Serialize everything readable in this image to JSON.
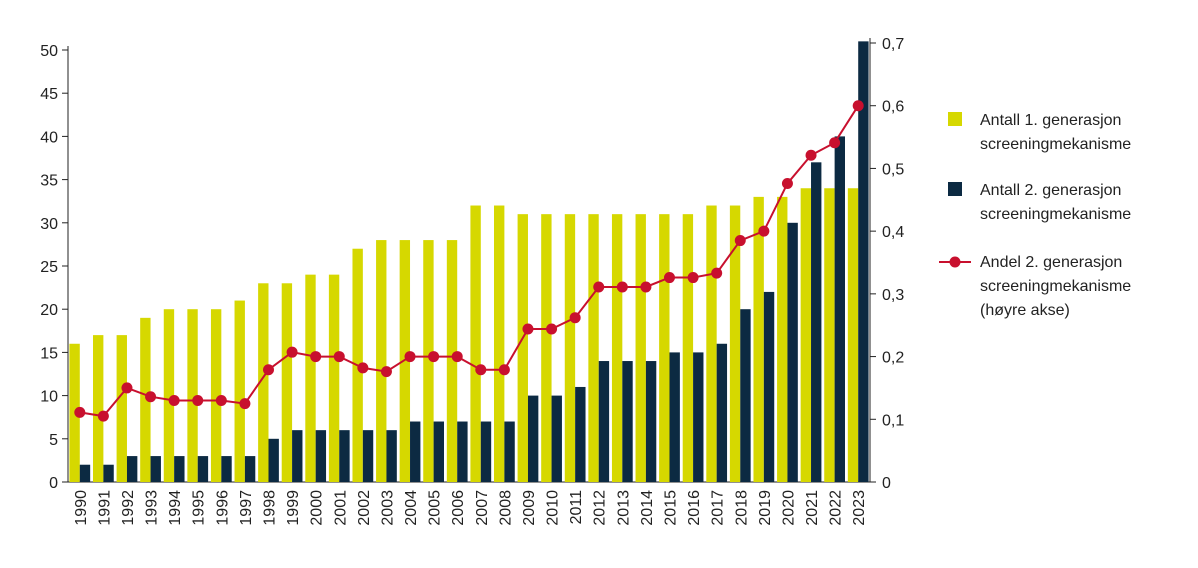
{
  "chart_data": {
    "type": "bar",
    "title": "",
    "xlabel": "",
    "ylabel": "",
    "ylim": [
      0,
      50
    ],
    "y2lim": [
      0,
      0.7
    ],
    "yticks": [
      "0",
      "5",
      "10",
      "15",
      "20",
      "25",
      "30",
      "35",
      "40",
      "45",
      "50"
    ],
    "y2ticks": [
      "0",
      "0,1",
      "0,2",
      "0,3",
      "0,4",
      "0,5",
      "0,6",
      "0,7"
    ],
    "legend_position": "right",
    "grid": false,
    "categories": [
      "1990",
      "1991",
      "1992",
      "1993",
      "1994",
      "1995",
      "1996",
      "1997",
      "1998",
      "1999",
      "2000",
      "2001",
      "2002",
      "2003",
      "2004",
      "2005",
      "2006",
      "2007",
      "2008",
      "2009",
      "2010",
      "2011",
      "2012",
      "2013",
      "2014",
      "2015",
      "2016",
      "2017",
      "2018",
      "2019",
      "2020",
      "2021",
      "2022",
      "2023"
    ],
    "series": [
      {
        "name": "Antall 1. generasjon screeningmekanisme",
        "type": "bar",
        "axis": "left",
        "color": "#d6d800",
        "values": [
          16,
          17,
          17,
          19,
          20,
          20,
          20,
          21,
          23,
          23,
          24,
          24,
          27,
          28,
          28,
          28,
          28,
          32,
          32,
          31,
          31,
          31,
          31,
          31,
          31,
          31,
          31,
          32,
          32,
          33,
          33,
          34,
          34,
          34
        ]
      },
      {
        "name": "Antall 2. generasjon screeningmekanisme",
        "type": "bar",
        "axis": "left",
        "color": "#0c2a42",
        "values": [
          2,
          2,
          3,
          3,
          3,
          3,
          3,
          3,
          5,
          6,
          6,
          6,
          6,
          6,
          7,
          7,
          7,
          7,
          7,
          10,
          10,
          11,
          14,
          14,
          14,
          15,
          15,
          16,
          20,
          22,
          30,
          37,
          40,
          51
        ]
      },
      {
        "name": "Andel 2. generasjon screeningmekanisme (høyre akse)",
        "type": "line",
        "axis": "right",
        "color": "#c8102e",
        "values": [
          0.111,
          0.105,
          0.15,
          0.136,
          0.13,
          0.13,
          0.13,
          0.125,
          0.179,
          0.207,
          0.2,
          0.2,
          0.182,
          0.176,
          0.2,
          0.2,
          0.2,
          0.179,
          0.179,
          0.244,
          0.244,
          0.262,
          0.311,
          0.311,
          0.311,
          0.326,
          0.326,
          0.333,
          0.385,
          0.4,
          0.476,
          0.521,
          0.541,
          0.6
        ]
      }
    ],
    "legend": [
      {
        "lines": [
          "Antall 1. generasjon",
          "screeningmekanisme"
        ]
      },
      {
        "lines": [
          "Antall 2. generasjon",
          "screeningmekanisme"
        ]
      },
      {
        "lines": [
          "Andel 2. generasjon",
          "screeningmekanisme",
          "(høyre akse)"
        ]
      }
    ]
  }
}
